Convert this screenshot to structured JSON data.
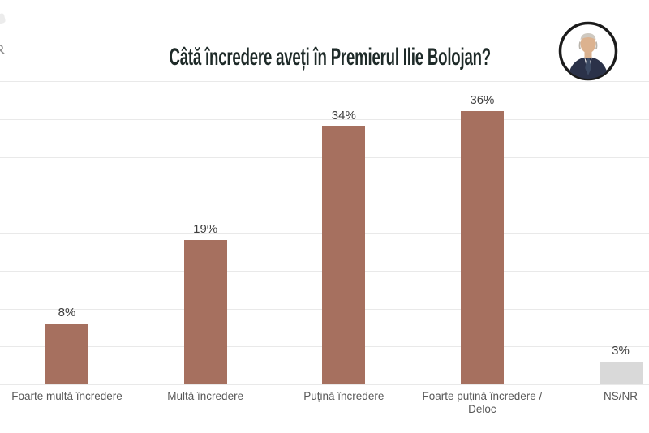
{
  "watermark_fragment": {
    "text": "R"
  },
  "header": {
    "title": "Câtă încredere aveți în Premierul Ilie Bolojan?",
    "title_color": "#1e2a28",
    "avatar_alt": "ilie-bolojan-portrait"
  },
  "chart_data": {
    "type": "bar",
    "title": "Câtă încredere aveți în Premierul Ilie Bolojan?",
    "categories": [
      "Foarte multă încredere",
      "Multă încredere",
      "Puțină încredere",
      "Foarte puțină încredere / Deloc",
      "NS/NR"
    ],
    "categories_lines": [
      [
        "Foarte multă încredere"
      ],
      [
        "Multă încredere"
      ],
      [
        "Puțină încredere"
      ],
      [
        "Foarte puțină încredere /",
        "Deloc"
      ],
      [
        "NS/NR"
      ]
    ],
    "values": [
      8,
      19,
      34,
      36,
      3
    ],
    "value_labels": [
      "8%",
      "19%",
      "34%",
      "36%",
      "3%"
    ],
    "bar_colors": [
      "#a6705f",
      "#a6705f",
      "#a6705f",
      "#a6705f",
      "#d9d9d9"
    ],
    "accent_bar_color": "#a6705f",
    "neutral_bar_color": "#d9d9d9",
    "ylim": [
      0,
      40
    ],
    "gridline_step": 5,
    "grid": true,
    "legend": "none",
    "xlabel": "",
    "ylabel": "",
    "value_label_color": "#3f3f3f",
    "category_label_color": "#595959",
    "gridline_color": "#e9e9e9"
  }
}
